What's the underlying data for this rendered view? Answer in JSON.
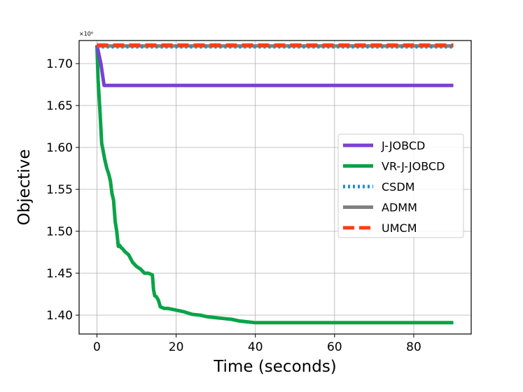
{
  "chart_data": {
    "type": "line",
    "xlabel": "Time (seconds)",
    "ylabel": "Objective",
    "y_multiplier_label": "×10⁶",
    "xlim": [
      -4.5,
      94.5
    ],
    "ylim": [
      1.3775,
      1.7275
    ],
    "xticks": [
      0,
      20,
      40,
      60,
      80
    ],
    "xtick_labels": [
      "0",
      "20",
      "40",
      "60",
      "80"
    ],
    "yticks": [
      1.4,
      1.45,
      1.5,
      1.55,
      1.6,
      1.65,
      1.7
    ],
    "ytick_labels": [
      "1.40",
      "1.45",
      "1.50",
      "1.55",
      "1.60",
      "1.65",
      "1.70"
    ],
    "grid": true,
    "legend_position": "center-right",
    "series": [
      {
        "name": "J-JOBCD",
        "color": "#7b3fd6",
        "style": "solid",
        "x": [
          0,
          1.0,
          1.8,
          90
        ],
        "y": [
          1.722,
          1.7,
          1.674,
          1.674
        ]
      },
      {
        "name": "VR-J-JOBCD",
        "color": "#0aa348",
        "style": "solid",
        "x": [
          0,
          0.3,
          0.8,
          1.2,
          1.6,
          2.0,
          2.5,
          3.0,
          3.4,
          3.8,
          4.2,
          4.6,
          5.0,
          5.4,
          5.8,
          6.0,
          6.5,
          7.0,
          7.5,
          8.0,
          9.0,
          10.0,
          11.0,
          12.0,
          13.0,
          14.0,
          14.3,
          14.6,
          15.0,
          15.5,
          16.0,
          17.0,
          18.0,
          20.0,
          22.0,
          24.0,
          26.0,
          28.0,
          30.0,
          32.0,
          34.0,
          36.0,
          38.0,
          40.0,
          45.0,
          60.0,
          75.0,
          90.0
        ],
        "y": [
          1.722,
          1.68,
          1.64,
          1.605,
          1.595,
          1.585,
          1.575,
          1.568,
          1.56,
          1.545,
          1.537,
          1.512,
          1.5,
          1.482,
          1.483,
          1.481,
          1.479,
          1.476,
          1.474,
          1.472,
          1.463,
          1.458,
          1.455,
          1.45,
          1.45,
          1.448,
          1.43,
          1.423,
          1.422,
          1.418,
          1.41,
          1.408,
          1.408,
          1.406,
          1.404,
          1.401,
          1.4,
          1.398,
          1.397,
          1.396,
          1.395,
          1.393,
          1.392,
          1.391,
          1.391,
          1.391,
          1.391,
          1.391
        ]
      },
      {
        "name": "CSDM",
        "color": "#1a8fcf",
        "style": "dotted",
        "x": [
          0,
          90
        ],
        "y": [
          1.72,
          1.72
        ]
      },
      {
        "name": "ADMM",
        "color": "#808080",
        "style": "solid",
        "x": [
          0,
          90
        ],
        "y": [
          1.721,
          1.721
        ]
      },
      {
        "name": "UMCM",
        "color": "#ff3d0d",
        "style": "dashed",
        "x": [
          0,
          90
        ],
        "y": [
          1.722,
          1.722
        ]
      }
    ]
  }
}
